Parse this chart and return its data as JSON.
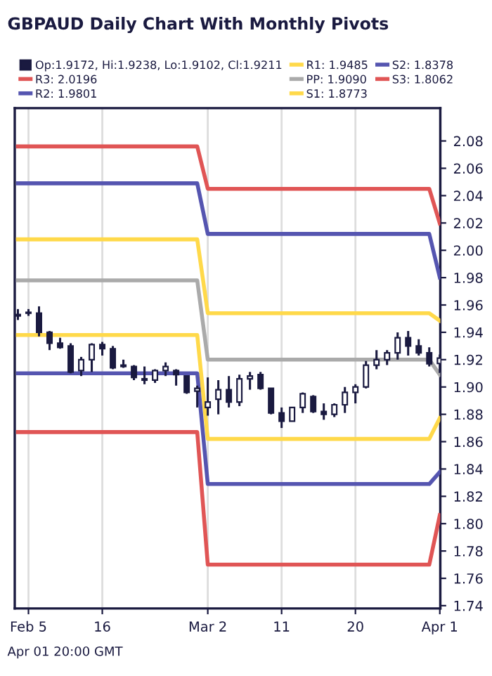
{
  "chart_data": {
    "type": "candlestick",
    "title": "GBPAUD Daily Chart With Monthly Pivots",
    "categories": [
      null,
      "Feb 5",
      null,
      null,
      null,
      null,
      null,
      null,
      "16",
      null,
      null,
      null,
      null,
      null,
      null,
      null,
      null,
      null,
      "Mar 2",
      null,
      null,
      null,
      null,
      null,
      null,
      "11",
      null,
      null,
      null,
      null,
      null,
      null,
      "20",
      null,
      null,
      null,
      null,
      null,
      null,
      null,
      "Apr 1"
    ],
    "ylim": [
      1.738,
      2.104
    ],
    "yticks": [
      1.74,
      1.76,
      1.78,
      {
        "value": 1.8,
        "label": "1.80"
      },
      1.82,
      1.84,
      1.86,
      1.88,
      {
        "value": 1.9,
        "label": "1.90"
      },
      1.92,
      1.94,
      1.96,
      1.98,
      {
        "value": 2.0,
        "label": "2.00"
      },
      2.02,
      2.04,
      2.06,
      2.08
    ],
    "grid": "x",
    "legend": "top",
    "annotations": [
      "Apr 01 20:00 GMT"
    ],
    "series": [
      {
        "name": "Op:1.9172, Hi:1.9238, Lo:1.9102, Cl:1.9211",
        "color": "#1a1a40",
        "ohlc": [
          [
            1.952,
            1.957,
            1.949,
            1.953
          ],
          [
            1.954,
            1.957,
            1.952,
            1.954
          ],
          [
            1.954,
            1.959,
            1.937,
            1.94
          ],
          [
            1.94,
            1.941,
            1.927,
            1.932
          ],
          [
            1.932,
            1.936,
            1.928,
            1.929
          ],
          [
            1.93,
            1.932,
            1.91,
            1.911
          ],
          [
            1.912,
            1.922,
            1.908,
            1.92
          ],
          [
            1.92,
            1.932,
            1.911,
            1.931
          ],
          [
            1.931,
            1.933,
            1.923,
            1.928
          ],
          [
            1.928,
            1.93,
            1.913,
            1.914
          ],
          [
            1.915,
            1.92,
            1.914,
            1.916
          ],
          [
            1.915,
            1.916,
            1.905,
            1.907
          ],
          [
            1.905,
            1.915,
            1.902,
            1.906
          ],
          [
            1.905,
            1.913,
            1.903,
            1.912
          ],
          [
            1.912,
            1.918,
            1.908,
            1.915
          ],
          [
            1.912,
            1.913,
            1.901,
            1.909
          ],
          [
            1.908,
            1.908,
            1.895,
            1.896
          ],
          [
            1.897,
            1.901,
            1.885,
            1.899
          ],
          [
            1.885,
            1.907,
            1.879,
            1.889
          ],
          [
            1.891,
            1.905,
            1.88,
            1.898
          ],
          [
            1.898,
            1.908,
            1.885,
            1.889
          ],
          [
            1.889,
            1.909,
            1.886,
            1.906
          ],
          [
            1.906,
            1.911,
            1.898,
            1.908
          ],
          [
            1.909,
            1.911,
            1.898,
            1.899
          ],
          [
            1.899,
            1.899,
            1.88,
            1.881
          ],
          [
            1.881,
            1.885,
            1.87,
            1.875
          ],
          [
            1.875,
            1.885,
            1.875,
            1.885
          ],
          [
            1.885,
            1.896,
            1.881,
            1.895
          ],
          [
            1.893,
            1.894,
            1.881,
            1.882
          ],
          [
            1.882,
            1.888,
            1.876,
            1.88
          ],
          [
            1.88,
            1.888,
            1.878,
            1.887
          ],
          [
            1.887,
            1.9,
            1.881,
            1.896
          ],
          [
            1.896,
            1.902,
            1.888,
            1.9
          ],
          [
            1.9,
            1.919,
            1.899,
            1.916
          ],
          [
            1.916,
            1.927,
            1.913,
            1.92
          ],
          [
            1.92,
            1.927,
            1.916,
            1.925
          ],
          [
            1.925,
            1.94,
            1.92,
            1.936
          ],
          [
            1.936,
            1.941,
            1.923,
            1.93
          ],
          [
            1.93,
            1.935,
            1.923,
            1.925
          ],
          [
            1.925,
            1.929,
            1.915,
            1.917
          ],
          [
            1.9172,
            1.9238,
            1.9102,
            1.9211
          ]
        ]
      },
      {
        "type": "line",
        "name": "R3: 2.0196",
        "color": "#e05555",
        "values": [
          2.076,
          2.076,
          2.076,
          2.076,
          2.076,
          2.076,
          2.076,
          2.076,
          2.076,
          2.076,
          2.076,
          2.076,
          2.076,
          2.076,
          2.076,
          2.076,
          2.076,
          2.076,
          2.045,
          2.045,
          2.045,
          2.045,
          2.045,
          2.045,
          2.045,
          2.045,
          2.045,
          2.045,
          2.045,
          2.045,
          2.045,
          2.045,
          2.045,
          2.045,
          2.045,
          2.045,
          2.045,
          2.045,
          2.045,
          2.045,
          2.0196
        ]
      },
      {
        "type": "line",
        "name": "R2: 1.9801",
        "color": "#5555b0",
        "values": [
          2.049,
          2.049,
          2.049,
          2.049,
          2.049,
          2.049,
          2.049,
          2.049,
          2.049,
          2.049,
          2.049,
          2.049,
          2.049,
          2.049,
          2.049,
          2.049,
          2.049,
          2.049,
          2.012,
          2.012,
          2.012,
          2.012,
          2.012,
          2.012,
          2.012,
          2.012,
          2.012,
          2.012,
          2.012,
          2.012,
          2.012,
          2.012,
          2.012,
          2.012,
          2.012,
          2.012,
          2.012,
          2.012,
          2.012,
          2.012,
          1.9801
        ]
      },
      {
        "type": "line",
        "name": "R1: 1.9485",
        "color": "#ffd94a",
        "values": [
          2.008,
          2.008,
          2.008,
          2.008,
          2.008,
          2.008,
          2.008,
          2.008,
          2.008,
          2.008,
          2.008,
          2.008,
          2.008,
          2.008,
          2.008,
          2.008,
          2.008,
          2.008,
          1.954,
          1.954,
          1.954,
          1.954,
          1.954,
          1.954,
          1.954,
          1.954,
          1.954,
          1.954,
          1.954,
          1.954,
          1.954,
          1.954,
          1.954,
          1.954,
          1.954,
          1.954,
          1.954,
          1.954,
          1.954,
          1.954,
          1.9485
        ]
      },
      {
        "type": "line",
        "name": "PP: 1.9090",
        "color": "#aaaaaa",
        "values": [
          1.978,
          1.978,
          1.978,
          1.978,
          1.978,
          1.978,
          1.978,
          1.978,
          1.978,
          1.978,
          1.978,
          1.978,
          1.978,
          1.978,
          1.978,
          1.978,
          1.978,
          1.978,
          1.92,
          1.92,
          1.92,
          1.92,
          1.92,
          1.92,
          1.92,
          1.92,
          1.92,
          1.92,
          1.92,
          1.92,
          1.92,
          1.92,
          1.92,
          1.92,
          1.92,
          1.92,
          1.92,
          1.92,
          1.92,
          1.92,
          1.909
        ]
      },
      {
        "type": "line",
        "name": "S1: 1.8773",
        "color": "#ffd94a",
        "values": [
          1.938,
          1.938,
          1.938,
          1.938,
          1.938,
          1.938,
          1.938,
          1.938,
          1.938,
          1.938,
          1.938,
          1.938,
          1.938,
          1.938,
          1.938,
          1.938,
          1.938,
          1.938,
          1.862,
          1.862,
          1.862,
          1.862,
          1.862,
          1.862,
          1.862,
          1.862,
          1.862,
          1.862,
          1.862,
          1.862,
          1.862,
          1.862,
          1.862,
          1.862,
          1.862,
          1.862,
          1.862,
          1.862,
          1.862,
          1.862,
          1.8773
        ]
      },
      {
        "type": "line",
        "name": "S2: 1.8378",
        "color": "#5555b0",
        "values": [
          1.91,
          1.91,
          1.91,
          1.91,
          1.91,
          1.91,
          1.91,
          1.91,
          1.91,
          1.91,
          1.91,
          1.91,
          1.91,
          1.91,
          1.91,
          1.91,
          1.91,
          1.91,
          1.829,
          1.829,
          1.829,
          1.829,
          1.829,
          1.829,
          1.829,
          1.829,
          1.829,
          1.829,
          1.829,
          1.829,
          1.829,
          1.829,
          1.829,
          1.829,
          1.829,
          1.829,
          1.829,
          1.829,
          1.829,
          1.829,
          1.8378
        ]
      },
      {
        "type": "line",
        "name": "S3: 1.8062",
        "color": "#e05555",
        "values": [
          1.867,
          1.867,
          1.867,
          1.867,
          1.867,
          1.867,
          1.867,
          1.867,
          1.867,
          1.867,
          1.867,
          1.867,
          1.867,
          1.867,
          1.867,
          1.867,
          1.867,
          1.867,
          1.77,
          1.77,
          1.77,
          1.77,
          1.77,
          1.77,
          1.77,
          1.77,
          1.77,
          1.77,
          1.77,
          1.77,
          1.77,
          1.77,
          1.77,
          1.77,
          1.77,
          1.77,
          1.77,
          1.77,
          1.77,
          1.77,
          1.8062
        ]
      }
    ]
  }
}
